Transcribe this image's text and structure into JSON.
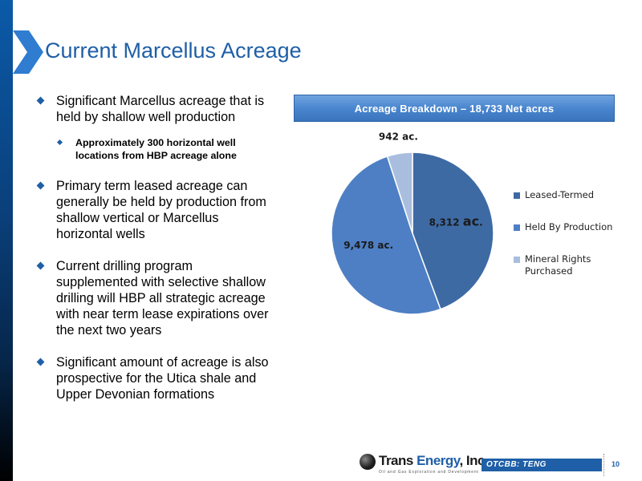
{
  "slide": {
    "title": "Current Marcellus Acreage",
    "bullets": [
      "Significant Marcellus acreage that is held by shallow well production",
      "Primary term leased acreage can generally be held by production from shallow vertical or Marcellus horizontal wells",
      "Current drilling program supplemented with selective shallow drilling will HBP all strategic acreage with near term lease expirations over the next two years",
      "Significant amount of acreage is also prospective for the Utica shale and Upper Devonian formations"
    ],
    "sub_bullet": "Approximately 300 horizontal well locations from HBP acreage alone"
  },
  "chart_data": {
    "type": "pie",
    "title": "Acreage Breakdown – 18,733 Net acres",
    "legend_position": "right",
    "slices": [
      {
        "name": "Leased-Termed",
        "value": 8312,
        "label_main": "8,312 ",
        "label_unit": "ac",
        "label_suffix": ".",
        "color": "#3e6aa4"
      },
      {
        "name": "Held By Production",
        "value": 9478,
        "label_main": "9,478 ac.",
        "label_unit": "",
        "label_suffix": "",
        "color": "#4e7fc4"
      },
      {
        "name": "Mineral Rights Purchased",
        "value": 942,
        "label_main": "942 ac.",
        "label_unit": "",
        "label_suffix": "",
        "color": "#a9bedf"
      }
    ]
  },
  "footer": {
    "company_name_part1": "Trans ",
    "company_name_part2": "Energy",
    "company_name_part3": ", Inc.",
    "tagline": "Oil and Gas Exploration and Development",
    "ticker": "OTCBB: TENG",
    "page_number": "10"
  },
  "colors": {
    "accent": "#1f5fa7",
    "header_bar": "#4a86cf"
  }
}
